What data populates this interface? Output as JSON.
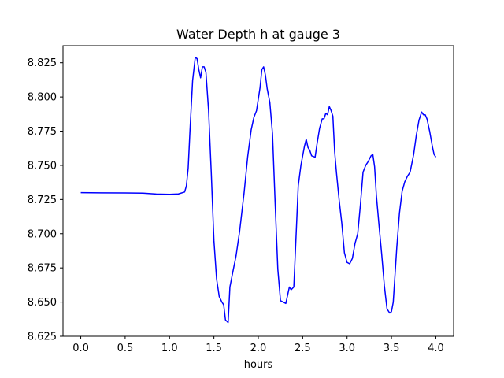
{
  "chart_data": {
    "type": "line",
    "title": "Water Depth h at gauge 3",
    "xlabel": "hours",
    "ylabel": "",
    "xlim": [
      -0.2,
      4.2
    ],
    "ylim": [
      8.625,
      8.8375
    ],
    "xticks": [
      "0.0",
      "0.5",
      "1.0",
      "1.5",
      "2.0",
      "2.5",
      "3.0",
      "3.5",
      "4.0"
    ],
    "yticks": [
      "8.625",
      "8.650",
      "8.675",
      "8.700",
      "8.725",
      "8.750",
      "8.775",
      "8.800",
      "8.825"
    ],
    "grid": false,
    "legend": "none",
    "series": [
      {
        "color": "#0000ff",
        "x": [
          0.0,
          0.5,
          0.7,
          0.85,
          1.0,
          1.1,
          1.17,
          1.19,
          1.21,
          1.23,
          1.26,
          1.29,
          1.31,
          1.33,
          1.35,
          1.37,
          1.39,
          1.41,
          1.44,
          1.47,
          1.5,
          1.53,
          1.56,
          1.59,
          1.61,
          1.63,
          1.66,
          1.68,
          1.71,
          1.75,
          1.79,
          1.84,
          1.88,
          1.92,
          1.95,
          1.98,
          2.02,
          2.04,
          2.06,
          2.08,
          2.1,
          2.13,
          2.16,
          2.19,
          2.22,
          2.25,
          2.28,
          2.31,
          2.33,
          2.35,
          2.37,
          2.4,
          2.43,
          2.45,
          2.48,
          2.52,
          2.54,
          2.56,
          2.58,
          2.6,
          2.64,
          2.66,
          2.69,
          2.72,
          2.74,
          2.76,
          2.78,
          2.8,
          2.82,
          2.84,
          2.86,
          2.88,
          2.91,
          2.94,
          2.97,
          3.0,
          3.03,
          3.06,
          3.09,
          3.12,
          3.15,
          3.18,
          3.21,
          3.24,
          3.27,
          3.29,
          3.31,
          3.33,
          3.36,
          3.39,
          3.42,
          3.45,
          3.48,
          3.5,
          3.52,
          3.54,
          3.56,
          3.59,
          3.62,
          3.65,
          3.68,
          3.71,
          3.75,
          3.78,
          3.81,
          3.84,
          3.86,
          3.88,
          3.9,
          3.93,
          3.96,
          3.98,
          4.0
        ],
        "values": [
          8.73,
          8.7298,
          8.7297,
          8.729,
          8.7288,
          8.7291,
          8.7305,
          8.735,
          8.748,
          8.775,
          8.812,
          8.829,
          8.828,
          8.82,
          8.814,
          8.822,
          8.822,
          8.818,
          8.79,
          8.745,
          8.695,
          8.667,
          8.654,
          8.65,
          8.648,
          8.637,
          8.635,
          8.661,
          8.671,
          8.684,
          8.702,
          8.73,
          8.756,
          8.776,
          8.785,
          8.79,
          8.807,
          8.82,
          8.822,
          8.816,
          8.806,
          8.796,
          8.773,
          8.722,
          8.674,
          8.651,
          8.65,
          8.649,
          8.655,
          8.661,
          8.659,
          8.661,
          8.705,
          8.735,
          8.75,
          8.764,
          8.769,
          8.763,
          8.761,
          8.757,
          8.756,
          8.765,
          8.777,
          8.784,
          8.784,
          8.788,
          8.787,
          8.793,
          8.79,
          8.786,
          8.76,
          8.745,
          8.725,
          8.708,
          8.686,
          8.679,
          8.678,
          8.682,
          8.693,
          8.7,
          8.721,
          8.745,
          8.75,
          8.753,
          8.757,
          8.758,
          8.749,
          8.728,
          8.706,
          8.685,
          8.662,
          8.645,
          8.642,
          8.643,
          8.65,
          8.67,
          8.69,
          8.715,
          8.731,
          8.738,
          8.742,
          8.745,
          8.758,
          8.772,
          8.783,
          8.789,
          8.787,
          8.787,
          8.784,
          8.775,
          8.764,
          8.758,
          8.756
        ]
      }
    ]
  }
}
